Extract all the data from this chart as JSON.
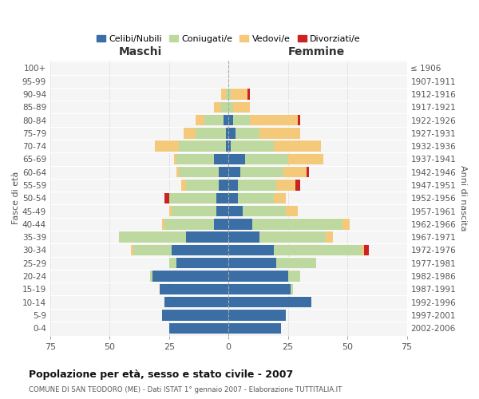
{
  "age_groups": [
    "0-4",
    "5-9",
    "10-14",
    "15-19",
    "20-24",
    "25-29",
    "30-34",
    "35-39",
    "40-44",
    "45-49",
    "50-54",
    "55-59",
    "60-64",
    "65-69",
    "70-74",
    "75-79",
    "80-84",
    "85-89",
    "90-94",
    "95-99",
    "100+"
  ],
  "birth_years": [
    "2002-2006",
    "1997-2001",
    "1992-1996",
    "1987-1991",
    "1982-1986",
    "1977-1981",
    "1972-1976",
    "1967-1971",
    "1962-1966",
    "1957-1961",
    "1952-1956",
    "1947-1951",
    "1942-1946",
    "1937-1941",
    "1932-1936",
    "1927-1931",
    "1922-1926",
    "1917-1921",
    "1912-1916",
    "1907-1911",
    "≤ 1906"
  ],
  "male": {
    "celibi": [
      25,
      28,
      27,
      29,
      32,
      22,
      24,
      18,
      6,
      5,
      5,
      4,
      4,
      6,
      1,
      1,
      2,
      0,
      0,
      0,
      0
    ],
    "coniugati": [
      0,
      0,
      0,
      0,
      1,
      3,
      16,
      28,
      21,
      19,
      20,
      14,
      17,
      16,
      20,
      13,
      8,
      3,
      1,
      0,
      0
    ],
    "vedovi": [
      0,
      0,
      0,
      0,
      0,
      0,
      1,
      0,
      1,
      1,
      0,
      2,
      1,
      1,
      10,
      5,
      4,
      3,
      2,
      0,
      0
    ],
    "divorziati": [
      0,
      0,
      0,
      0,
      0,
      0,
      0,
      0,
      0,
      0,
      2,
      0,
      0,
      0,
      0,
      0,
      0,
      0,
      0,
      0,
      0
    ]
  },
  "female": {
    "nubili": [
      22,
      24,
      35,
      26,
      25,
      20,
      19,
      13,
      10,
      6,
      4,
      4,
      5,
      7,
      1,
      3,
      2,
      0,
      0,
      0,
      0
    ],
    "coniugate": [
      0,
      0,
      0,
      1,
      5,
      17,
      37,
      28,
      38,
      18,
      15,
      16,
      18,
      18,
      18,
      10,
      7,
      2,
      1,
      0,
      0
    ],
    "vedove": [
      0,
      0,
      0,
      0,
      0,
      0,
      1,
      3,
      3,
      5,
      5,
      8,
      10,
      15,
      20,
      17,
      20,
      7,
      7,
      0,
      0
    ],
    "divorziate": [
      0,
      0,
      0,
      0,
      0,
      0,
      2,
      0,
      0,
      0,
      0,
      2,
      1,
      0,
      0,
      0,
      1,
      0,
      1,
      0,
      0
    ]
  },
  "colors": {
    "celibi": "#3A6EA5",
    "coniugati": "#BDD9A0",
    "vedovi": "#F5C97A",
    "divorziati": "#CC2222"
  },
  "xlim": 75,
  "title": "Popolazione per età, sesso e stato civile - 2007",
  "subtitle": "COMUNE DI SAN TEODORO (ME) - Dati ISTAT 1° gennaio 2007 - Elaborazione TUTTITALIA.IT",
  "ylabel_left": "Fasce di età",
  "ylabel_right": "Anni di nascita",
  "xlabel_male": "Maschi",
  "xlabel_female": "Femmine",
  "legend_labels": [
    "Celibi/Nubili",
    "Coniugati/e",
    "Vedovi/e",
    "Divorziati/e"
  ]
}
